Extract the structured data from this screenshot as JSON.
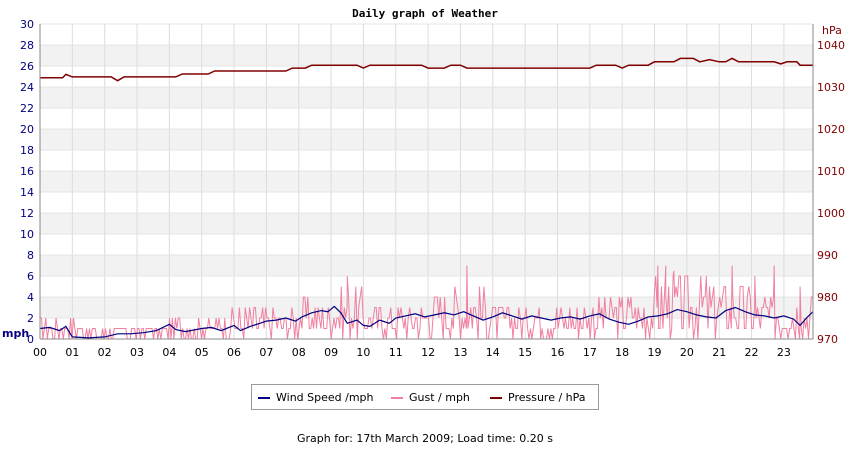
{
  "chart_data": {
    "type": "line",
    "title": "Daily graph of Weather",
    "left_unit": "mph",
    "right_unit": "hPa",
    "x_ticks": [
      "00",
      "01",
      "02",
      "03",
      "04",
      "05",
      "06",
      "07",
      "08",
      "09",
      "10",
      "11",
      "12",
      "13",
      "14",
      "15",
      "16",
      "17",
      "18",
      "19",
      "20",
      "21",
      "22",
      "23"
    ],
    "xlim": [
      0,
      23.9
    ],
    "left_ylim": [
      0,
      30
    ],
    "left_ticks": [
      0,
      2,
      4,
      6,
      8,
      10,
      12,
      14,
      16,
      18,
      20,
      22,
      24,
      26,
      28,
      30
    ],
    "right_ylim": [
      970,
      1045
    ],
    "right_ticks": [
      970,
      980,
      990,
      1000,
      1010,
      1020,
      1030,
      1040
    ],
    "grid": true,
    "colors": {
      "wind": "#000080",
      "gust": "#f080a0",
      "pressure": "#800000",
      "left_axis": "#000080",
      "right_axis": "#800000"
    },
    "series": [
      {
        "name": "Wind Speed /mph",
        "axis": "left",
        "points": [
          [
            0,
            1
          ],
          [
            0.3,
            1.1
          ],
          [
            0.6,
            0.8
          ],
          [
            0.8,
            1.2
          ],
          [
            1.0,
            0.2
          ],
          [
            1.5,
            0.1
          ],
          [
            2.0,
            0.2
          ],
          [
            2.4,
            0.5
          ],
          [
            2.8,
            0.5
          ],
          [
            3.2,
            0.6
          ],
          [
            3.6,
            0.8
          ],
          [
            4.0,
            1.4
          ],
          [
            4.2,
            0.9
          ],
          [
            4.5,
            0.7
          ],
          [
            5.0,
            1.0
          ],
          [
            5.3,
            1.1
          ],
          [
            5.6,
            0.8
          ],
          [
            6.0,
            1.3
          ],
          [
            6.2,
            0.8
          ],
          [
            6.5,
            1.2
          ],
          [
            6.8,
            1.5
          ],
          [
            7.0,
            1.7
          ],
          [
            7.3,
            1.8
          ],
          [
            7.6,
            2.0
          ],
          [
            7.9,
            1.7
          ],
          [
            8.1,
            2.1
          ],
          [
            8.4,
            2.5
          ],
          [
            8.7,
            2.7
          ],
          [
            8.9,
            2.6
          ],
          [
            9.1,
            3.1
          ],
          [
            9.3,
            2.5
          ],
          [
            9.5,
            1.5
          ],
          [
            9.8,
            1.8
          ],
          [
            10.0,
            1.3
          ],
          [
            10.2,
            1.2
          ],
          [
            10.5,
            1.8
          ],
          [
            10.8,
            1.5
          ],
          [
            11.0,
            2.0
          ],
          [
            11.3,
            2.2
          ],
          [
            11.6,
            2.4
          ],
          [
            11.9,
            2.1
          ],
          [
            12.2,
            2.3
          ],
          [
            12.5,
            2.5
          ],
          [
            12.8,
            2.3
          ],
          [
            13.1,
            2.6
          ],
          [
            13.4,
            2.2
          ],
          [
            13.7,
            1.8
          ],
          [
            14.0,
            2.1
          ],
          [
            14.3,
            2.5
          ],
          [
            14.6,
            2.2
          ],
          [
            14.9,
            1.9
          ],
          [
            15.2,
            2.2
          ],
          [
            15.5,
            2.0
          ],
          [
            15.8,
            1.8
          ],
          [
            16.1,
            2.0
          ],
          [
            16.4,
            2.1
          ],
          [
            16.7,
            1.9
          ],
          [
            17.0,
            2.2
          ],
          [
            17.3,
            2.4
          ],
          [
            17.6,
            1.9
          ],
          [
            17.9,
            1.6
          ],
          [
            18.2,
            1.4
          ],
          [
            18.5,
            1.7
          ],
          [
            18.8,
            2.1
          ],
          [
            19.1,
            2.2
          ],
          [
            19.4,
            2.4
          ],
          [
            19.7,
            2.8
          ],
          [
            20.0,
            2.6
          ],
          [
            20.3,
            2.3
          ],
          [
            20.6,
            2.1
          ],
          [
            20.9,
            2.0
          ],
          [
            21.2,
            2.7
          ],
          [
            21.5,
            3.0
          ],
          [
            21.8,
            2.6
          ],
          [
            22.1,
            2.3
          ],
          [
            22.4,
            2.2
          ],
          [
            22.7,
            2.0
          ],
          [
            23.0,
            2.2
          ],
          [
            23.3,
            1.9
          ],
          [
            23.5,
            1.3
          ],
          [
            23.7,
            2.0
          ],
          [
            23.9,
            2.6
          ]
        ]
      },
      {
        "name": "Gust / mph",
        "axis": "left",
        "segments": [
          [
            0,
            1.5,
            0,
            2
          ],
          [
            1.5,
            2,
            0,
            1
          ],
          [
            2,
            4,
            0,
            1.5
          ],
          [
            4,
            5.5,
            0,
            2
          ],
          [
            5.5,
            7,
            0,
            3
          ],
          [
            7,
            8,
            0,
            3
          ],
          [
            8,
            9,
            0,
            4
          ],
          [
            9,
            10,
            0,
            5
          ],
          [
            10,
            12,
            0,
            3.5
          ],
          [
            12,
            14,
            0,
            5
          ],
          [
            14,
            17,
            0,
            3.5
          ],
          [
            17,
            18,
            0,
            4
          ],
          [
            18,
            19,
            0,
            4.5
          ],
          [
            19,
            20.5,
            0,
            6
          ],
          [
            20.5,
            22,
            0,
            5.5
          ],
          [
            22,
            23.9,
            0,
            4.5
          ]
        ],
        "spikes": [
          [
            9.5,
            6
          ],
          [
            13.2,
            7
          ],
          [
            19.1,
            7
          ],
          [
            19.35,
            7
          ],
          [
            19.6,
            6.5
          ],
          [
            20.6,
            6
          ],
          [
            21.4,
            7
          ],
          [
            22.1,
            6
          ],
          [
            22.7,
            7
          ],
          [
            23.5,
            5
          ]
        ]
      },
      {
        "name": "Pressure / hPa",
        "axis": "right",
        "points": [
          [
            0,
            1032.2
          ],
          [
            0.7,
            1032.2
          ],
          [
            0.8,
            1033
          ],
          [
            1.0,
            1032.4
          ],
          [
            2.2,
            1032.4
          ],
          [
            2.4,
            1031.5
          ],
          [
            2.6,
            1032.4
          ],
          [
            4.2,
            1032.4
          ],
          [
            4.4,
            1033.1
          ],
          [
            5.2,
            1033.1
          ],
          [
            5.4,
            1033.8
          ],
          [
            7.6,
            1033.8
          ],
          [
            7.8,
            1034.5
          ],
          [
            8.2,
            1034.5
          ],
          [
            8.4,
            1035.2
          ],
          [
            9.8,
            1035.2
          ],
          [
            10.0,
            1034.5
          ],
          [
            10.2,
            1035.2
          ],
          [
            11.8,
            1035.2
          ],
          [
            12.0,
            1034.5
          ],
          [
            12.5,
            1034.5
          ],
          [
            12.7,
            1035.2
          ],
          [
            13.0,
            1035.2
          ],
          [
            13.2,
            1034.5
          ],
          [
            17.0,
            1034.5
          ],
          [
            17.2,
            1035.2
          ],
          [
            17.8,
            1035.2
          ],
          [
            18.0,
            1034.5
          ],
          [
            18.2,
            1035.2
          ],
          [
            18.8,
            1035.2
          ],
          [
            19.0,
            1036
          ],
          [
            19.6,
            1036
          ],
          [
            19.8,
            1036.8
          ],
          [
            20.2,
            1036.8
          ],
          [
            20.4,
            1036
          ],
          [
            20.7,
            1036.5
          ],
          [
            21.0,
            1036
          ],
          [
            21.2,
            1036
          ],
          [
            21.4,
            1036.8
          ],
          [
            21.6,
            1036
          ],
          [
            22.7,
            1036
          ],
          [
            22.9,
            1035.5
          ],
          [
            23.1,
            1036
          ],
          [
            23.4,
            1036
          ],
          [
            23.5,
            1035.2
          ],
          [
            23.9,
            1035.2
          ]
        ]
      }
    ]
  },
  "legend": {
    "wind": "Wind Speed /mph",
    "gust": "Gust / mph",
    "pressure": "Pressure / hPa"
  },
  "footer": "Graph for: 17th March 2009; Load time: 0.20 s"
}
